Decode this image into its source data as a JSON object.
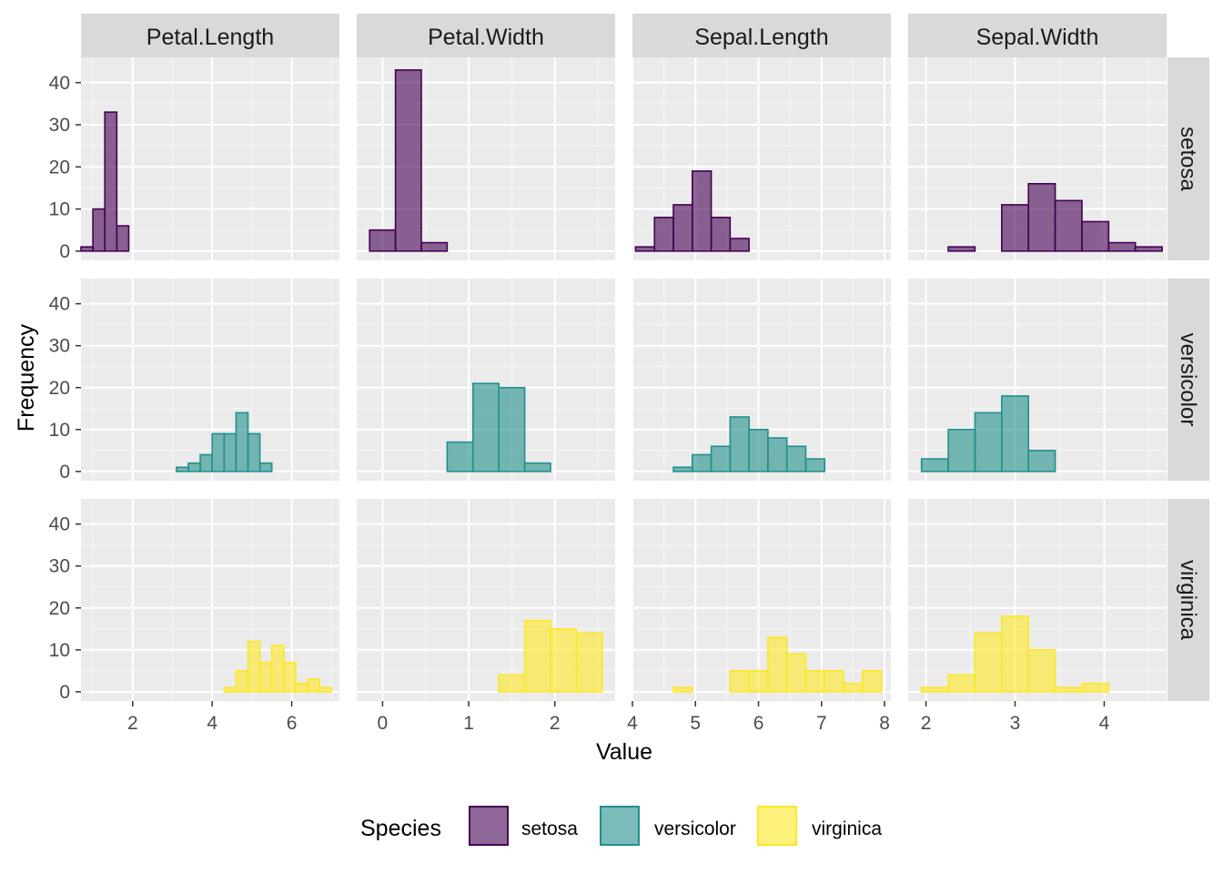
{
  "chart_data": {
    "type": "histogram",
    "xlabel": "Value",
    "ylabel": "Frequency",
    "ylim": [
      -2.2,
      46
    ],
    "yticks": [
      0,
      10,
      20,
      30,
      40
    ],
    "grid": true,
    "legend": {
      "title": "Species",
      "position": "bottom",
      "entries": [
        {
          "key": "setosa",
          "label": "setosa",
          "fill": "#440154",
          "stroke": "#440154"
        },
        {
          "key": "versicolor",
          "label": "versicolor",
          "fill": "#21908C",
          "stroke": "#21908C"
        },
        {
          "key": "virginica",
          "label": "virginica",
          "fill": "#FDE725",
          "stroke": "#FDE725"
        }
      ]
    },
    "rows": [
      "setosa",
      "versicolor",
      "virginica"
    ],
    "columns": [
      {
        "label": "Petal.Length",
        "xlim": [
          0.7,
          7.2
        ],
        "xticks": [
          2,
          4,
          6
        ],
        "bin_start": 0.7,
        "bin_width": 0.3,
        "counts": {
          "setosa": [
            1,
            10,
            33,
            6,
            0,
            0,
            0,
            0,
            0,
            0,
            0,
            0,
            0,
            0,
            0,
            0,
            0,
            0,
            0,
            0,
            0
          ],
          "versicolor": [
            0,
            0,
            0,
            0,
            0,
            0,
            0,
            0,
            1,
            2,
            4,
            9,
            9,
            14,
            9,
            2,
            0,
            0,
            0,
            0,
            0
          ],
          "virginica": [
            0,
            0,
            0,
            0,
            0,
            0,
            0,
            0,
            0,
            0,
            0,
            0,
            1,
            5,
            12,
            7,
            11,
            7,
            2,
            3,
            1
          ]
        }
      },
      {
        "label": "Petal.Width",
        "xlim": [
          -0.3,
          2.7
        ],
        "xticks": [
          0,
          1,
          2
        ],
        "bin_start": -0.15,
        "bin_width": 0.3,
        "counts": {
          "setosa": [
            5,
            43,
            2,
            0,
            0,
            0,
            0,
            0,
            0
          ],
          "versicolor": [
            0,
            0,
            0,
            7,
            21,
            20,
            2,
            0,
            0
          ],
          "virginica": [
            0,
            0,
            0,
            0,
            0,
            4,
            17,
            15,
            14
          ]
        }
      },
      {
        "label": "Sepal.Length",
        "xlim": [
          4.0,
          8.1
        ],
        "xticks": [
          4,
          5,
          6,
          7,
          8
        ],
        "bin_start": 4.05,
        "bin_width": 0.3,
        "counts": {
          "setosa": [
            1,
            8,
            11,
            19,
            8,
            3,
            0,
            0,
            0,
            0,
            0,
            0,
            0
          ],
          "versicolor": [
            0,
            0,
            1,
            4,
            6,
            13,
            10,
            8,
            6,
            3,
            0,
            0,
            0
          ],
          "virginica": [
            0,
            0,
            1,
            0,
            0,
            5,
            5,
            13,
            9,
            5,
            5,
            2,
            5
          ]
        }
      },
      {
        "label": "Sepal.Width",
        "xlim": [
          1.8,
          4.7
        ],
        "xticks": [
          2,
          3,
          4
        ],
        "bin_start": 1.95,
        "bin_width": 0.3,
        "counts": {
          "setosa": [
            0,
            1,
            0,
            11,
            16,
            12,
            7,
            2,
            1
          ],
          "versicolor": [
            3,
            10,
            14,
            18,
            5,
            0,
            0,
            0,
            0
          ],
          "virginica": [
            1,
            4,
            14,
            18,
            10,
            1,
            2,
            0,
            0
          ]
        }
      }
    ]
  }
}
